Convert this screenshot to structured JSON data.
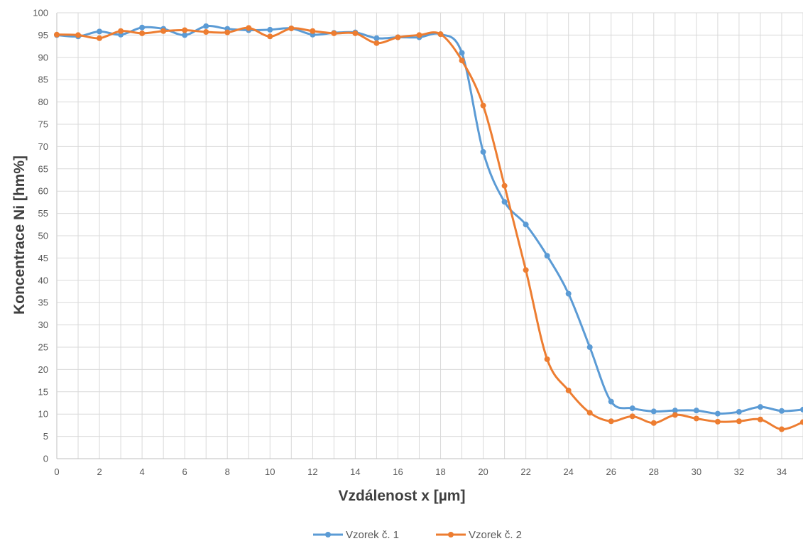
{
  "chart_data": {
    "type": "line",
    "title": "",
    "xlabel": "Vzdálenost x [µm]",
    "ylabel": "Koncentrace Ni [hm%]",
    "xlim": [
      0,
      35
    ],
    "ylim": [
      0,
      100
    ],
    "xticks": [
      0,
      2,
      4,
      6,
      8,
      10,
      12,
      14,
      16,
      18,
      20,
      22,
      24,
      26,
      28,
      30,
      32,
      34
    ],
    "yticks": [
      0,
      5,
      10,
      15,
      20,
      25,
      30,
      35,
      40,
      45,
      50,
      55,
      60,
      65,
      70,
      75,
      80,
      85,
      90,
      95,
      100
    ],
    "grid": true,
    "legend_position": "bottom",
    "x": [
      0,
      1,
      2,
      3,
      4,
      5,
      6,
      7,
      8,
      9,
      10,
      11,
      12,
      13,
      14,
      15,
      16,
      17,
      18,
      19,
      20,
      21,
      22,
      23,
      24,
      25,
      26,
      27,
      28,
      29,
      30,
      31,
      32,
      33,
      34,
      35
    ],
    "series": [
      {
        "name": "Vzorek č. 1",
        "color": "#5b9bd5",
        "values": [
          95.0,
          94.7,
          95.8,
          95.1,
          96.7,
          96.4,
          95.0,
          97.0,
          96.4,
          96.1,
          96.2,
          96.5,
          95.1,
          95.5,
          95.6,
          94.3,
          94.5,
          94.5,
          95.2,
          91.0,
          68.8,
          57.6,
          52.5,
          45.5,
          37.0,
          25.0,
          12.8,
          11.3,
          10.6,
          10.8,
          10.8,
          10.1,
          10.5,
          11.6,
          10.7,
          11.0
        ]
      },
      {
        "name": "Vzorek č. 2",
        "color": "#ed7d31",
        "values": [
          95.1,
          95.0,
          94.3,
          95.9,
          95.4,
          95.9,
          96.1,
          95.7,
          95.6,
          96.6,
          94.7,
          96.5,
          95.9,
          95.4,
          95.4,
          93.2,
          94.5,
          95.0,
          95.2,
          89.3,
          79.2,
          61.2,
          42.3,
          22.3,
          15.3,
          10.3,
          8.4,
          9.5,
          8.0,
          9.8,
          9.0,
          8.3,
          8.4,
          8.8,
          6.6,
          8.2
        ]
      }
    ]
  }
}
